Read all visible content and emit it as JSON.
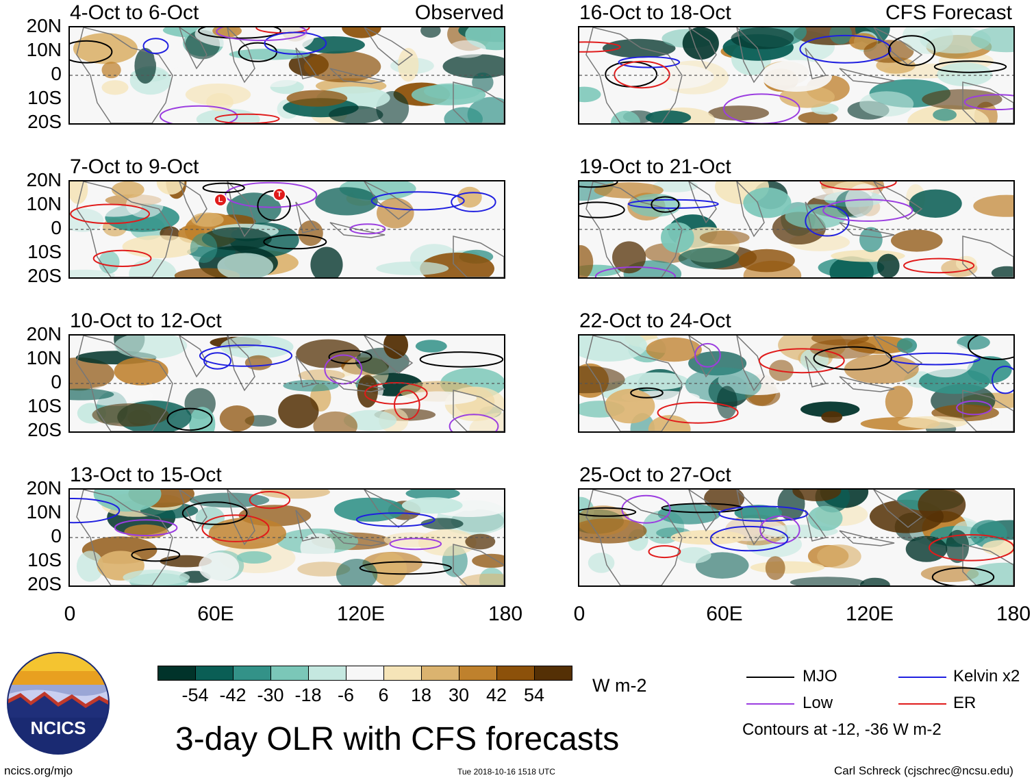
{
  "titles": {
    "left_header": "Observed",
    "right_header": "CFS Forecast"
  },
  "panels": [
    {
      "id": "p1",
      "col": "left",
      "date": "4-Oct to 6-Oct"
    },
    {
      "id": "p2",
      "col": "left",
      "date": "7-Oct to 9-Oct"
    },
    {
      "id": "p3",
      "col": "left",
      "date": "10-Oct to 12-Oct"
    },
    {
      "id": "p4",
      "col": "left",
      "date": "13-Oct to 15-Oct"
    },
    {
      "id": "p5",
      "col": "right",
      "date": "16-Oct to 18-Oct"
    },
    {
      "id": "p6",
      "col": "right",
      "date": "19-Oct to 21-Oct"
    },
    {
      "id": "p7",
      "col": "right",
      "date": "22-Oct to 24-Oct"
    },
    {
      "id": "p8",
      "col": "right",
      "date": "25-Oct to 27-Oct"
    }
  ],
  "storm_markers": [
    "L",
    "T"
  ],
  "lat_ticks": [
    "20N",
    "10N",
    "0",
    "10S",
    "20S"
  ],
  "lon_ticks": [
    "0",
    "60E",
    "120E",
    "180"
  ],
  "colorbar": {
    "labels": [
      "-54",
      "-42",
      "-30",
      "-18",
      "-6",
      "6",
      "18",
      "30",
      "42",
      "54"
    ],
    "colors": [
      "#01332a",
      "#0a5e55",
      "#339288",
      "#7bc7b8",
      "#c5e8e0",
      "#f7f7f7",
      "#f5e4b8",
      "#dbb36f",
      "#bf812d",
      "#8c510a",
      "#543005"
    ],
    "units": "W m-2"
  },
  "legend": {
    "mjo": {
      "label": "MJO",
      "color": "#000000"
    },
    "kelvin": {
      "label": "Kelvin x2",
      "color": "#1f1fe0"
    },
    "low": {
      "label": "Low",
      "color": "#9b3de0"
    },
    "er": {
      "label": "ER",
      "color": "#e01b1b"
    },
    "note": "Contours at -12, -36 W m-2"
  },
  "footer": {
    "logo_text": "NCICS",
    "main_title": "3-day OLR with CFS forecasts",
    "url": "ncics.org/mjo",
    "timestamp": "Tue 2018-10-16 1518 UTC",
    "credit": "Carl Schreck (cjschrec@ncsu.edu)"
  }
}
